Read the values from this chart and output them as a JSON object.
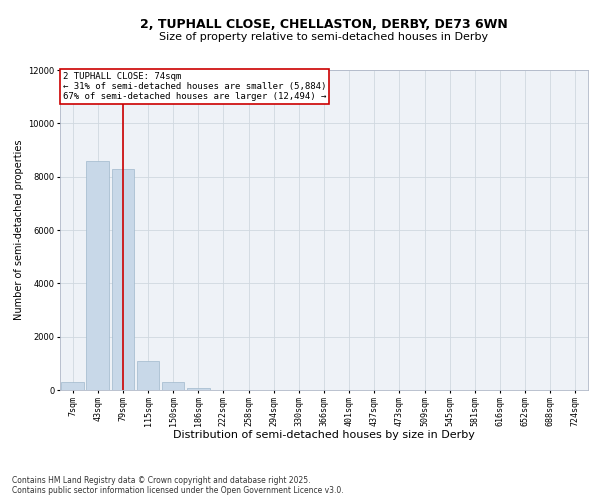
{
  "title_line1": "2, TUPHALL CLOSE, CHELLASTON, DERBY, DE73 6WN",
  "title_line2": "Size of property relative to semi-detached houses in Derby",
  "xlabel": "Distribution of semi-detached houses by size in Derby",
  "ylabel": "Number of semi-detached properties",
  "categories": [
    "7sqm",
    "43sqm",
    "79sqm",
    "115sqm",
    "150sqm",
    "186sqm",
    "222sqm",
    "258sqm",
    "294sqm",
    "330sqm",
    "366sqm",
    "401sqm",
    "437sqm",
    "473sqm",
    "509sqm",
    "545sqm",
    "581sqm",
    "616sqm",
    "652sqm",
    "688sqm",
    "724sqm"
  ],
  "values": [
    300,
    8600,
    8300,
    1100,
    300,
    80,
    10,
    0,
    0,
    0,
    0,
    0,
    0,
    0,
    0,
    0,
    0,
    0,
    0,
    0,
    0
  ],
  "bar_color": "#c8d8e8",
  "bar_edge_color": "#a0b8cc",
  "grid_color": "#d0d8e0",
  "vline_color": "#cc0000",
  "vline_x_index": 2,
  "annotation_title": "2 TUPHALL CLOSE: 74sqm",
  "annotation_line2": "← 31% of semi-detached houses are smaller (5,884)",
  "annotation_line3": "67% of semi-detached houses are larger (12,494) →",
  "annotation_box_color": "#ffffff",
  "annotation_box_edge": "#cc0000",
  "ylim": [
    0,
    12000
  ],
  "yticks": [
    0,
    2000,
    4000,
    6000,
    8000,
    10000,
    12000
  ],
  "footer_line1": "Contains HM Land Registry data © Crown copyright and database right 2025.",
  "footer_line2": "Contains public sector information licensed under the Open Government Licence v3.0.",
  "bg_color": "#eef2f7",
  "title1_fontsize": 9,
  "title2_fontsize": 8,
  "xlabel_fontsize": 8,
  "ylabel_fontsize": 7,
  "tick_fontsize": 6,
  "ann_fontsize": 6.5,
  "footer_fontsize": 5.5
}
